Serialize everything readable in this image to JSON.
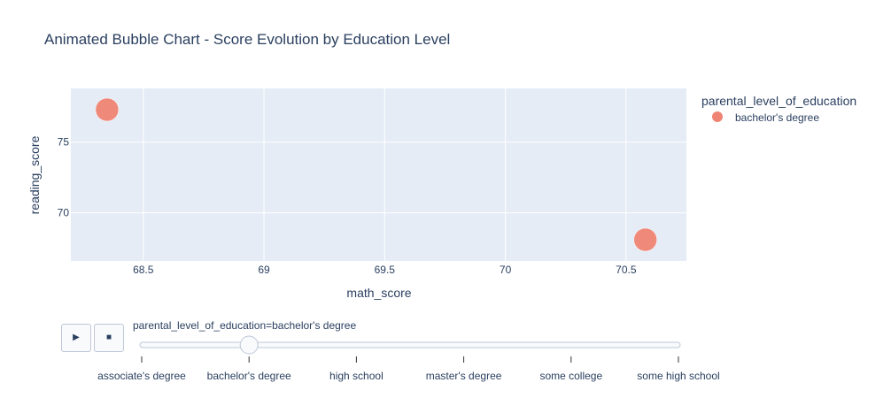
{
  "chart_data": {
    "type": "scatter",
    "title": "Animated Bubble Chart - Score Evolution by Education Level",
    "xlabel": "math_score",
    "ylabel": "reading_score",
    "xlim": [
      68.2,
      70.75
    ],
    "ylim": [
      66.6,
      78.8
    ],
    "x_ticks": [
      68.5,
      69,
      69.5,
      70,
      70.5
    ],
    "x_tick_labels": [
      "68.5",
      "69",
      "69.5",
      "70",
      "70.5"
    ],
    "y_ticks": [
      70,
      75
    ],
    "y_tick_labels": [
      "70",
      "75"
    ],
    "grid": true,
    "legend": {
      "title": "parental_level_of_education",
      "position": "right"
    },
    "series": [
      {
        "name": "bachelor's degree",
        "color": "#ef8473",
        "points": [
          {
            "x": 68.35,
            "y": 77.3
          },
          {
            "x": 70.58,
            "y": 68.1
          }
        ]
      }
    ]
  },
  "controls": {
    "play_icon": "▶",
    "stop_icon": "■",
    "slider_label": "parental_level_of_education=bachelor's degree",
    "slider_steps": [
      "associate's degree",
      "bachelor's degree",
      "high school",
      "master's degree",
      "some college",
      "some high school"
    ],
    "active_step": 1
  }
}
